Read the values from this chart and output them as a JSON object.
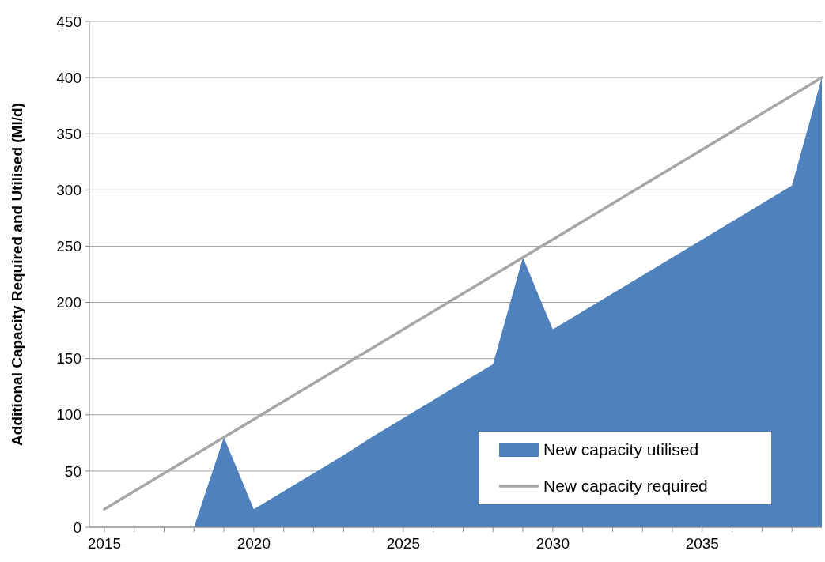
{
  "chart_data": {
    "type": "area",
    "ylabel": "Additional Capacity Required and Utilised (Ml/d)",
    "x": [
      2015,
      2016,
      2017,
      2018,
      2019,
      2020,
      2021,
      2022,
      2023,
      2024,
      2025,
      2026,
      2027,
      2028,
      2029,
      2030,
      2031,
      2032,
      2033,
      2034,
      2035,
      2036,
      2037,
      2038,
      2039
    ],
    "series": [
      {
        "name": "New capacity utilised",
        "color": "#4f81bd",
        "values": [
          0,
          0,
          0,
          0,
          80,
          16,
          32,
          48,
          64,
          81,
          97,
          113,
          129,
          145,
          240,
          176,
          192,
          208,
          224,
          240,
          256,
          272,
          288,
          304,
          400
        ]
      },
      {
        "name": "New capacity required",
        "type": "line",
        "color": "#a6a6a6",
        "values": [
          16,
          32,
          48,
          64,
          80,
          96,
          112,
          128,
          144,
          160,
          176,
          192,
          208,
          224,
          240,
          256,
          272,
          288,
          304,
          320,
          336,
          352,
          368,
          384,
          400
        ]
      }
    ],
    "xlim": [
      2014.5,
      2039
    ],
    "xticks": [
      2015,
      {
        "value": 2016,
        "label": null
      },
      {
        "value": 2017,
        "label": null
      },
      {
        "value": 2018,
        "label": null
      },
      {
        "value": 2019,
        "label": null
      },
      2020,
      {
        "value": 2021,
        "label": null
      },
      {
        "value": 2022,
        "label": null
      },
      {
        "value": 2023,
        "label": null
      },
      {
        "value": 2024,
        "label": null
      },
      2025,
      {
        "value": 2026,
        "label": null
      },
      {
        "value": 2027,
        "label": null
      },
      {
        "value": 2028,
        "label": null
      },
      {
        "value": 2029,
        "label": null
      },
      2030,
      {
        "value": 2031,
        "label": null
      },
      {
        "value": 2032,
        "label": null
      },
      {
        "value": 2033,
        "label": null
      },
      {
        "value": 2034,
        "label": null
      },
      2035,
      {
        "value": 2036,
        "label": null
      },
      {
        "value": 2037,
        "label": null
      },
      {
        "value": 2038,
        "label": null
      }
    ],
    "ylim": [
      0,
      450
    ],
    "yticks": [
      0,
      50,
      100,
      150,
      200,
      250,
      300,
      350,
      400,
      450
    ],
    "grid": "y",
    "legend": "bottom right"
  }
}
